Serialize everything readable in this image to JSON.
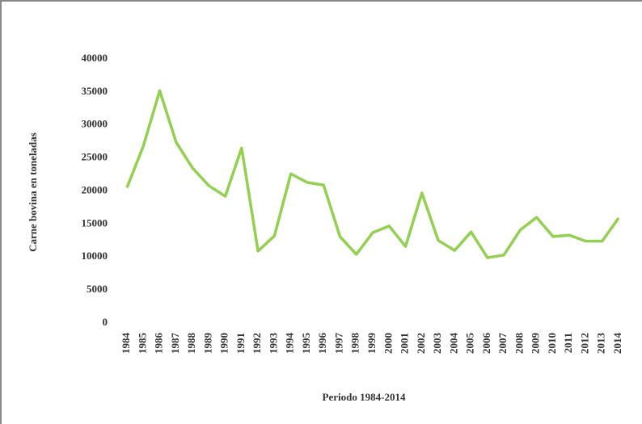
{
  "chart_data": {
    "type": "line",
    "categories": [
      "1984",
      "1985",
      "1986",
      "1987",
      "1988",
      "1989",
      "1990",
      "1991",
      "1992",
      "1993",
      "1994",
      "1995",
      "1996",
      "1997",
      "1998",
      "1999",
      "2000",
      "2001",
      "2002",
      "2003",
      "2004",
      "2005",
      "2006",
      "2007",
      "2008",
      "2009",
      "2010",
      "2011",
      "2012",
      "2013",
      "2014"
    ],
    "series": [
      {
        "name": "Carne bovina",
        "color": "#92d050",
        "values": [
          20500,
          26800,
          35200,
          27400,
          23500,
          20800,
          19200,
          26500,
          10900,
          13200,
          22600,
          21300,
          20900,
          13100,
          10400,
          13700,
          14700,
          11600,
          19700,
          12500,
          11000,
          13800,
          9900,
          10300,
          14100,
          16000,
          13100,
          13300,
          12400,
          12400,
          15900
        ]
      }
    ],
    "ylabel": "Carne bovina en toneladas",
    "xlabel": "Periodo 1984-2014",
    "ylim": [
      0,
      40000
    ],
    "yticks": [
      0,
      5000,
      10000,
      15000,
      20000,
      25000,
      30000,
      35000,
      40000
    ],
    "grid": false
  }
}
